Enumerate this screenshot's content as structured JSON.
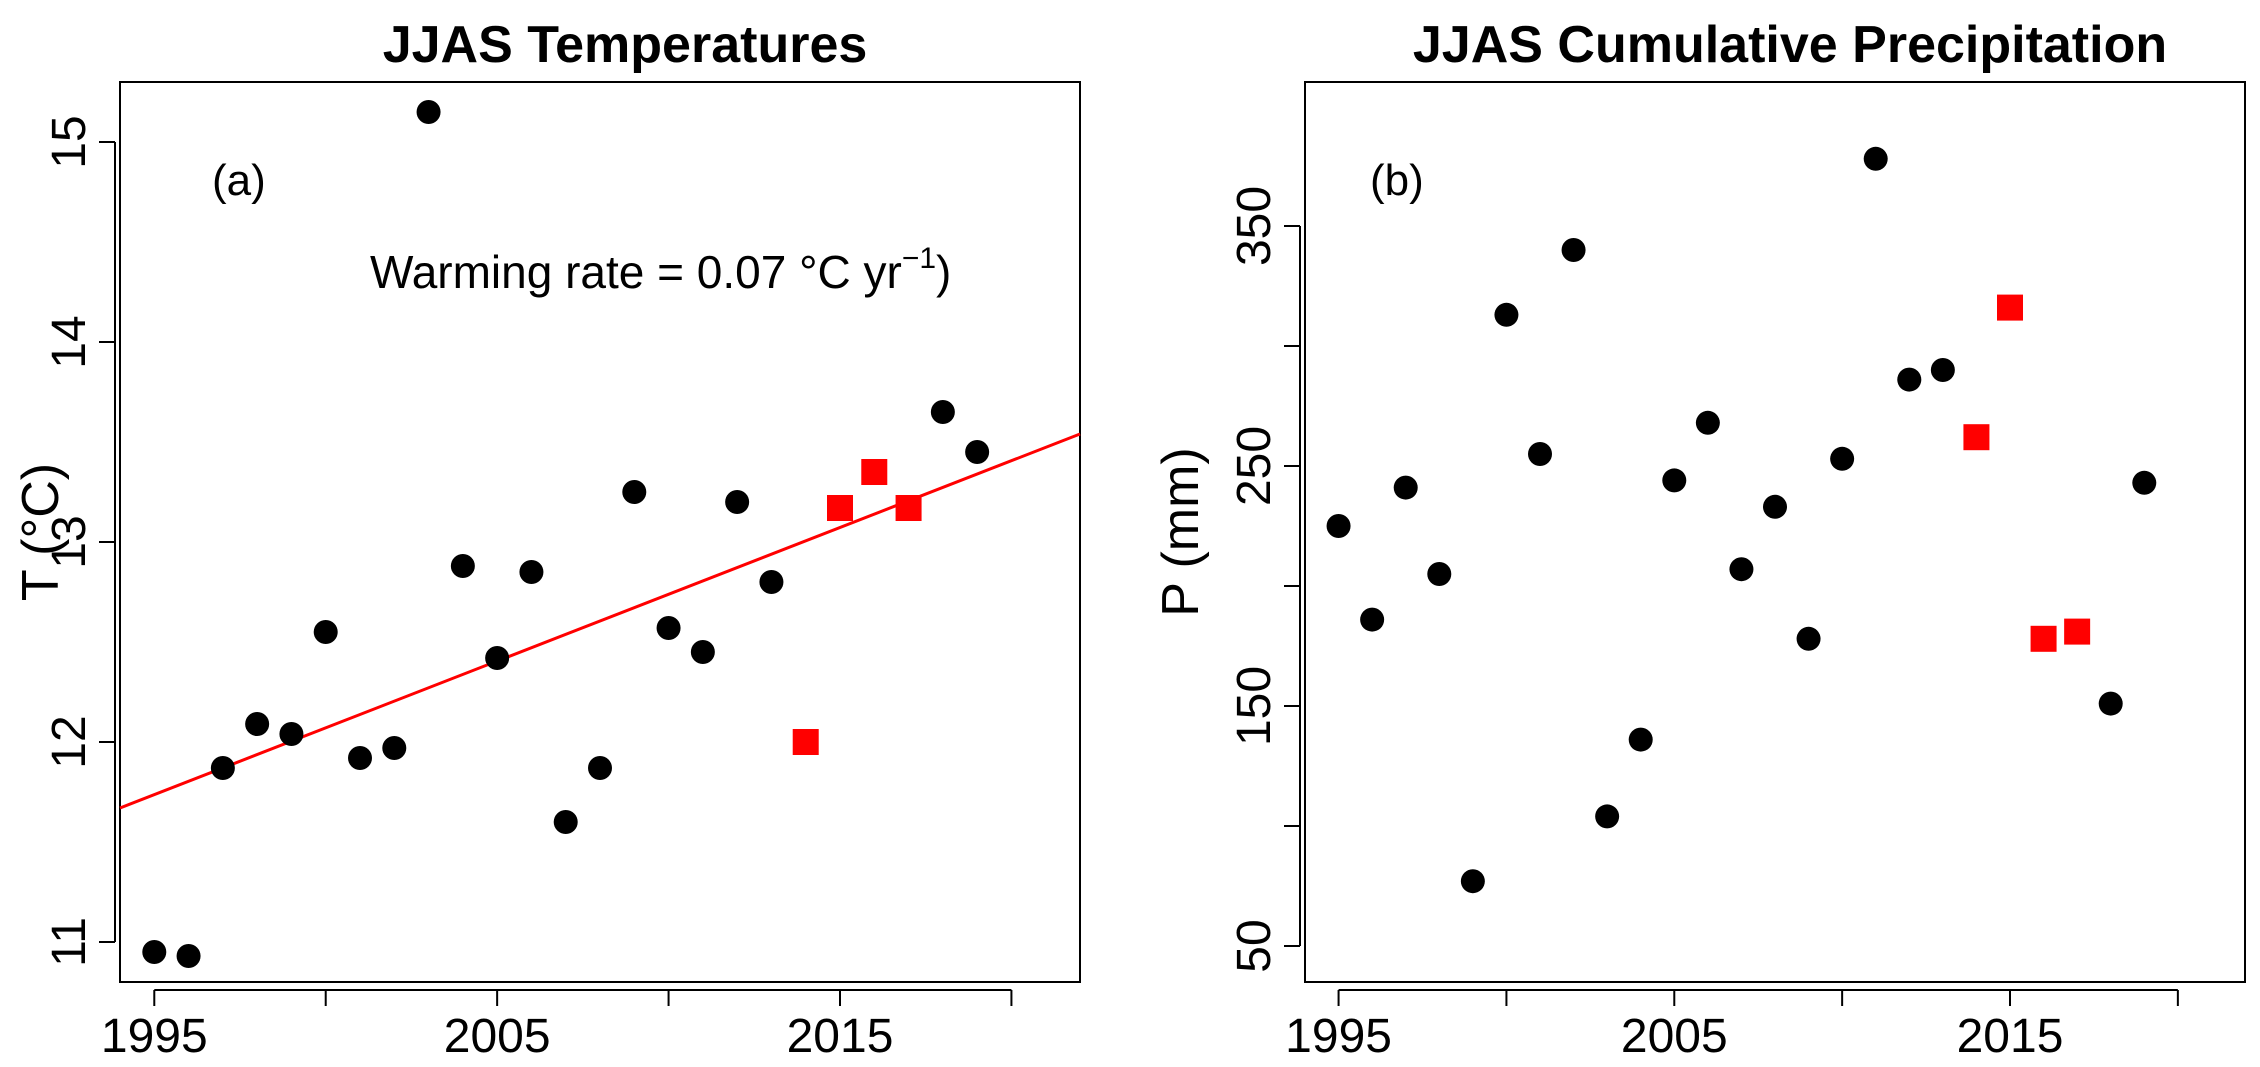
{
  "chart_data": [
    {
      "type": "scatter",
      "title": "JJAS Temperatures",
      "panel_label": "(a)",
      "ylabel": "T (°C)",
      "xlabel": "",
      "xlim": [
        1994,
        2022
      ],
      "ylim": [
        10.8,
        15.3
      ],
      "xticks": [
        1995,
        2000,
        2005,
        2010,
        2015,
        2020
      ],
      "xtick_labels": [
        "1995",
        "",
        "2005",
        "",
        "2015",
        ""
      ],
      "yticks": [
        11,
        12,
        13,
        14,
        15
      ],
      "ytick_labels": [
        "11",
        "12",
        "13",
        "14",
        "15"
      ],
      "grid": false,
      "annotation": {
        "prefix": "Warming rate = 0.07 °C yr",
        "sup": "−1",
        "suffix": ")"
      },
      "trend_line": {
        "color": "#ff0000",
        "x": [
          1994,
          2022
        ],
        "y": [
          11.67,
          13.54
        ]
      },
      "series": [
        {
          "marker": "circle",
          "color": "#000000",
          "points": [
            [
              1995,
              10.95
            ],
            [
              1996,
              10.93
            ],
            [
              1997,
              11.87
            ],
            [
              1998,
              12.09
            ],
            [
              1999,
              12.04
            ],
            [
              2000,
              12.55
            ],
            [
              2001,
              11.92
            ],
            [
              2002,
              11.97
            ],
            [
              2003,
              15.15
            ],
            [
              2004,
              12.88
            ],
            [
              2005,
              12.42
            ],
            [
              2006,
              12.85
            ],
            [
              2007,
              11.6
            ],
            [
              2008,
              11.87
            ],
            [
              2009,
              13.25
            ],
            [
              2010,
              12.57
            ],
            [
              2011,
              12.45
            ],
            [
              2012,
              13.2
            ],
            [
              2013,
              12.8
            ],
            [
              2018,
              13.65
            ],
            [
              2019,
              13.45
            ]
          ]
        },
        {
          "marker": "square",
          "color": "#ff0000",
          "points": [
            [
              2014,
              12.0
            ],
            [
              2015,
              13.17
            ],
            [
              2016,
              13.35
            ],
            [
              2017,
              13.17
            ]
          ]
        }
      ]
    },
    {
      "type": "scatter",
      "title": "JJAS Cumulative Precipitation",
      "panel_label": "(b)",
      "ylabel": "P (mm)",
      "xlabel": "",
      "xlim": [
        1994,
        2022
      ],
      "ylim": [
        35,
        410
      ],
      "xticks": [
        1995,
        2000,
        2005,
        2010,
        2015,
        2020
      ],
      "xtick_labels": [
        "1995",
        "",
        "2005",
        "",
        "2015",
        ""
      ],
      "yticks": [
        50,
        100,
        150,
        200,
        250,
        300,
        350
      ],
      "ytick_labels": [
        "50",
        "",
        "150",
        "",
        "250",
        "",
        "350"
      ],
      "grid": false,
      "series": [
        {
          "marker": "circle",
          "color": "#000000",
          "points": [
            [
              1995,
              225
            ],
            [
              1996,
              186
            ],
            [
              1997,
              241
            ],
            [
              1998,
              205
            ],
            [
              1999,
              77
            ],
            [
              2000,
              313
            ],
            [
              2001,
              255
            ],
            [
              2002,
              340
            ],
            [
              2003,
              104
            ],
            [
              2004,
              136
            ],
            [
              2005,
              244
            ],
            [
              2006,
              268
            ],
            [
              2007,
              207
            ],
            [
              2008,
              233
            ],
            [
              2009,
              178
            ],
            [
              2010,
              253
            ],
            [
              2011,
              378
            ],
            [
              2012,
              286
            ],
            [
              2013,
              290
            ],
            [
              2018,
              151
            ],
            [
              2019,
              243
            ]
          ]
        },
        {
          "marker": "square",
          "color": "#ff0000",
          "points": [
            [
              2014,
              262
            ],
            [
              2015,
              316
            ],
            [
              2016,
              178
            ],
            [
              2017,
              181
            ]
          ]
        }
      ]
    }
  ]
}
